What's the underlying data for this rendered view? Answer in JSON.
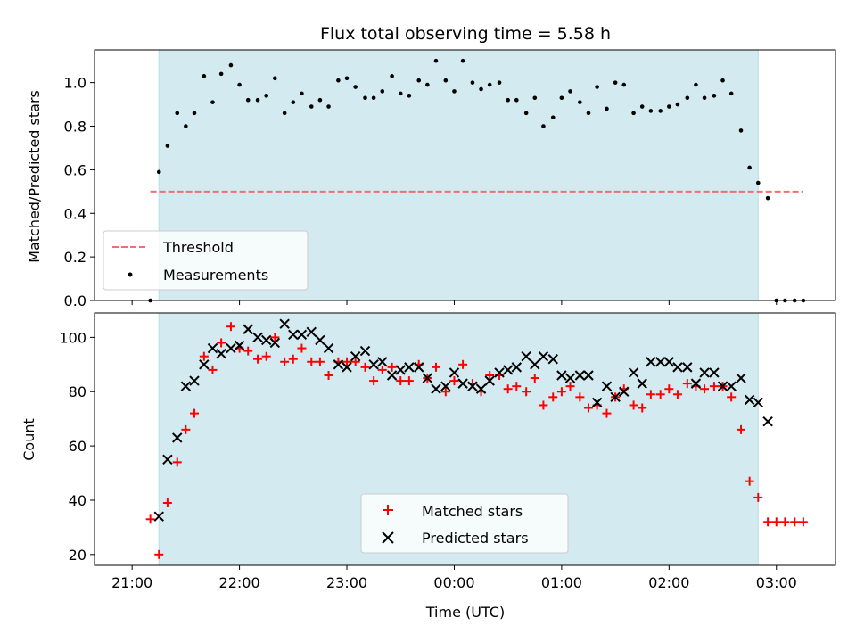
{
  "chart_data": [
    {
      "type": "scatter",
      "title": "Flux total observing time = 5.58 h",
      "ylabel": "Matched/Predicted stars",
      "xlabel": "",
      "x_unit": "hours since 21:00 UTC",
      "xlim": [
        -0.35,
        6.55
      ],
      "ylim": [
        0.0,
        1.15
      ],
      "yticks": [
        0.0,
        0.2,
        0.4,
        0.6,
        0.8,
        1.0
      ],
      "yticklabels": [
        "0.0",
        "0.2",
        "0.4",
        "0.6",
        "0.8",
        "1.0"
      ],
      "observing_window": [
        0.25,
        5.83
      ],
      "observing_window_color": "#d3eaf0",
      "threshold": {
        "name": "Threshold",
        "value": 0.5,
        "x": [
          0.17,
          6.25
        ],
        "color": "#f07070",
        "style": "dashed"
      },
      "legend": {
        "placement": "lower-left"
      },
      "series": [
        {
          "name": "Measurements",
          "color": "#000000",
          "marker": "dot",
          "x": [
            0.17,
            0.25,
            0.33,
            0.42,
            0.5,
            0.58,
            0.67,
            0.75,
            0.83,
            0.92,
            1.0,
            1.08,
            1.17,
            1.25,
            1.33,
            1.42,
            1.5,
            1.58,
            1.67,
            1.75,
            1.83,
            1.92,
            2.0,
            2.08,
            2.17,
            2.25,
            2.33,
            2.42,
            2.5,
            2.58,
            2.67,
            2.75,
            2.83,
            2.92,
            3.0,
            3.08,
            3.17,
            3.25,
            3.33,
            3.42,
            3.5,
            3.58,
            3.67,
            3.75,
            3.83,
            3.92,
            4.0,
            4.08,
            4.17,
            4.25,
            4.33,
            4.42,
            4.5,
            4.58,
            4.67,
            4.75,
            4.83,
            4.92,
            5.0,
            5.08,
            5.17,
            5.25,
            5.33,
            5.42,
            5.5,
            5.58,
            5.67,
            5.75,
            5.83,
            5.92,
            6.0,
            6.08,
            6.17,
            6.25
          ],
          "y": [
            0.0,
            0.59,
            0.71,
            0.86,
            0.8,
            0.86,
            1.03,
            0.91,
            1.04,
            1.08,
            0.99,
            0.92,
            0.92,
            0.94,
            1.02,
            0.86,
            0.91,
            0.95,
            0.89,
            0.92,
            0.89,
            1.01,
            1.02,
            0.98,
            0.93,
            0.93,
            0.96,
            1.03,
            0.95,
            0.94,
            1.01,
            0.99,
            1.1,
            1.01,
            0.96,
            1.1,
            1.0,
            0.97,
            0.99,
            1.0,
            0.92,
            0.92,
            0.86,
            0.93,
            0.8,
            0.84,
            0.93,
            0.96,
            0.91,
            0.86,
            0.98,
            0.88,
            1.0,
            0.99,
            0.86,
            0.89,
            0.87,
            0.87,
            0.89,
            0.9,
            0.93,
            0.99,
            0.93,
            0.94,
            1.01,
            0.95,
            0.78,
            0.61,
            0.54,
            0.47,
            0.0,
            0.0,
            0.0,
            0.0
          ]
        }
      ]
    },
    {
      "type": "scatter",
      "title": "",
      "ylabel": "Count",
      "xlabel": "Time (UTC)",
      "x_unit": "hours since 21:00 UTC",
      "xlim": [
        -0.35,
        6.55
      ],
      "ylim": [
        16,
        109
      ],
      "yticks": [
        20,
        40,
        60,
        80,
        100
      ],
      "yticklabels": [
        "20",
        "40",
        "60",
        "80",
        "100"
      ],
      "xticks": [
        0,
        1,
        2,
        3,
        4,
        5,
        6
      ],
      "xticklabels": [
        "21:00",
        "22:00",
        "23:00",
        "00:00",
        "01:00",
        "02:00",
        "03:00"
      ],
      "observing_window": [
        0.25,
        5.83
      ],
      "observing_window_color": "#d3eaf0",
      "legend": {
        "placement": "lower-center"
      },
      "series": [
        {
          "name": "Matched stars",
          "color": "#ff0000",
          "marker": "plus",
          "x": [
            0.17,
            0.25,
            0.33,
            0.42,
            0.5,
            0.58,
            0.67,
            0.75,
            0.83,
            0.92,
            1.0,
            1.08,
            1.17,
            1.25,
            1.33,
            1.42,
            1.5,
            1.58,
            1.67,
            1.75,
            1.83,
            1.92,
            2.0,
            2.08,
            2.17,
            2.25,
            2.33,
            2.42,
            2.5,
            2.58,
            2.67,
            2.75,
            2.83,
            2.92,
            3.0,
            3.08,
            3.17,
            3.25,
            3.33,
            3.42,
            3.5,
            3.58,
            3.67,
            3.75,
            3.83,
            3.92,
            4.0,
            4.08,
            4.17,
            4.25,
            4.33,
            4.42,
            4.5,
            4.58,
            4.67,
            4.75,
            4.83,
            4.92,
            5.0,
            5.08,
            5.17,
            5.25,
            5.33,
            5.42,
            5.5,
            5.58,
            5.67,
            5.75,
            5.83,
            5.92,
            6.0,
            6.08,
            6.17,
            6.25
          ],
          "y": [
            33,
            20,
            39,
            54,
            66,
            72,
            93,
            88,
            98,
            104,
            96,
            95,
            92,
            93,
            100,
            91,
            92,
            96,
            91,
            91,
            86,
            91,
            91,
            91,
            89,
            84,
            88,
            89,
            84,
            84,
            90,
            85,
            89,
            80,
            84,
            90,
            83,
            80,
            86,
            86,
            81,
            82,
            80,
            85,
            75,
            78,
            80,
            82,
            78,
            74,
            75,
            72,
            78,
            81,
            75,
            74,
            79,
            79,
            81,
            79,
            83,
            82,
            81,
            82,
            82,
            78,
            66,
            47,
            41,
            32,
            32,
            32,
            32,
            32
          ]
        },
        {
          "name": "Predicted stars",
          "color": "#000000",
          "marker": "x",
          "x": [
            0.25,
            0.33,
            0.42,
            0.5,
            0.58,
            0.67,
            0.75,
            0.83,
            0.92,
            1.0,
            1.08,
            1.17,
            1.25,
            1.33,
            1.42,
            1.5,
            1.58,
            1.67,
            1.75,
            1.83,
            1.92,
            2.0,
            2.08,
            2.17,
            2.25,
            2.33,
            2.42,
            2.5,
            2.58,
            2.67,
            2.75,
            2.83,
            2.92,
            3.0,
            3.08,
            3.17,
            3.25,
            3.33,
            3.42,
            3.5,
            3.58,
            3.67,
            3.75,
            3.83,
            3.92,
            4.0,
            4.08,
            4.17,
            4.25,
            4.33,
            4.42,
            4.5,
            4.58,
            4.67,
            4.75,
            4.83,
            4.92,
            5.0,
            5.08,
            5.17,
            5.25,
            5.33,
            5.42,
            5.5,
            5.58,
            5.67,
            5.75,
            5.83,
            5.92
          ],
          "y": [
            34,
            55,
            63,
            82,
            84,
            90,
            96,
            94,
            96,
            97,
            103,
            100,
            99,
            98,
            105,
            101,
            101,
            102,
            99,
            96,
            90,
            89,
            93,
            95,
            90,
            91,
            86,
            88,
            89,
            89,
            85,
            81,
            82,
            87,
            83,
            82,
            81,
            84,
            87,
            88,
            89,
            93,
            90,
            93,
            92,
            86,
            85,
            86,
            86,
            76,
            82,
            78,
            80,
            87,
            83,
            91,
            91,
            91,
            89,
            89,
            83,
            87,
            87,
            82,
            82,
            85,
            77,
            76,
            69
          ]
        }
      ]
    }
  ]
}
